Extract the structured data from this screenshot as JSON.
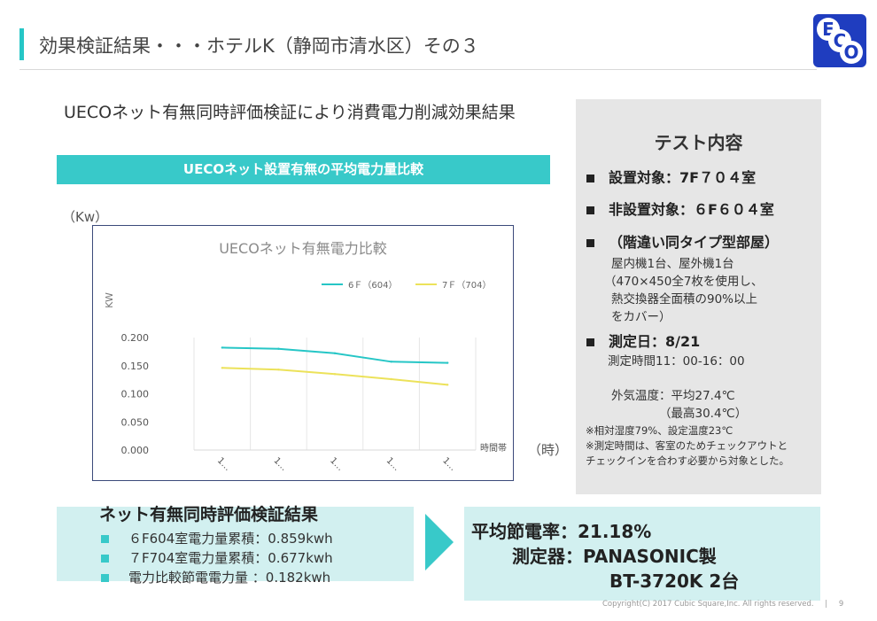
{
  "header": {
    "title": "効果検証結果・・・ホテルK（静岡市清水区）その３",
    "logo_letters": [
      "E",
      "C",
      "O"
    ],
    "accent_color": "#26c6c6",
    "logo_color": "#1f3dbf"
  },
  "subtitle": "UECOネット有無同時評価検証により消費電力削減効果結果",
  "chart_banner": "UECOネット設置有無の平均電力量比較",
  "units": {
    "kw": "（Kw）",
    "time": "（時）"
  },
  "chart_data": {
    "type": "line",
    "title": "UECOネット有無電力比較",
    "ylabel": "KW",
    "xlabel": "時間帯",
    "x": [
      "1…",
      "1…",
      "1…",
      "1…",
      "1…"
    ],
    "ylim": [
      0,
      0.2
    ],
    "yticks": [
      "0.200",
      "0.150",
      "0.100",
      "0.050",
      "0.000"
    ],
    "legend_position": "top-right",
    "series": [
      {
        "name": "6Ｆ（604）",
        "color": "#26c6c6",
        "values": [
          0.182,
          0.18,
          0.172,
          0.157,
          0.155
        ]
      },
      {
        "name": "7Ｆ（704）",
        "color": "#ece25a",
        "values": [
          0.146,
          0.143,
          0.135,
          0.126,
          0.116
        ]
      }
    ]
  },
  "panel": {
    "heading": "テスト内容",
    "item1": "設置対象：7F７０４室",
    "item2": "非設置対象：６F６０４室",
    "item3": "（階違い同タイプ型部屋）",
    "item3_lines": [
      "屋内機1台、屋外機1台",
      "（470×450全7枚を使用し、",
      "熱交換器全面積の90%以上",
      "をカバー）"
    ],
    "item4": "測定日：8/21",
    "item4_line": "測定時間11：00-16：00",
    "temp_lines": [
      "外気温度：平均27.4℃",
      "（最高30.4℃）"
    ],
    "notes": [
      "※相対湿度79%、設定温度23℃",
      "※測定時間は、客室のためチェックアウトと",
      "チェックインを合わす必要から対象とした。"
    ]
  },
  "result": {
    "title": "ネット有無同時評価検証結果",
    "items": [
      "６F604室電力量累積：0.859kwh",
      "７F704室電力量累積：0.677kwh",
      "電力比較節電電力量 ：0.182kwh"
    ]
  },
  "summary": {
    "rate": "平均節電率：21.18%",
    "device": "測定器：PANASONIC製",
    "model": "BT-3720K 2台"
  },
  "footer": {
    "copyright": "Copyright(C) 2017 Cubic Square,Inc. All rights reserved.",
    "separator": "|",
    "page": "9"
  }
}
